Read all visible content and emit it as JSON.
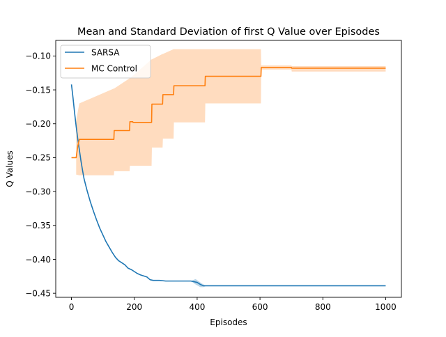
{
  "chart_data": {
    "type": "line",
    "title": "Mean and Standard Deviation of first Q Value over Episodes",
    "xlabel": "Episodes",
    "ylabel": "Q Values",
    "xlim": [
      -50,
      1050
    ],
    "ylim": [
      -0.456,
      -0.077
    ],
    "x_ticks": [
      0,
      200,
      400,
      600,
      800,
      1000
    ],
    "y_ticks": [
      -0.45,
      -0.4,
      -0.35,
      -0.3,
      -0.25,
      -0.2,
      -0.15,
      -0.1
    ],
    "x_tick_labels": [
      "0",
      "200",
      "400",
      "600",
      "800",
      "1000"
    ],
    "y_tick_labels": [
      "−0.45",
      "−0.40",
      "−0.35",
      "−0.30",
      "−0.25",
      "−0.20",
      "−0.15",
      "−0.10"
    ],
    "legend_position": "top-left",
    "grid": false,
    "series": [
      {
        "name": "SARSA",
        "color": "#1f77b4",
        "points": [
          [
            0,
            -0.142
          ],
          [
            5,
            -0.162
          ],
          [
            10,
            -0.184
          ],
          [
            15,
            -0.204
          ],
          [
            20,
            -0.222
          ],
          [
            25,
            -0.238
          ],
          [
            30,
            -0.254
          ],
          [
            35,
            -0.268
          ],
          [
            40,
            -0.281
          ],
          [
            50,
            -0.299
          ],
          [
            60,
            -0.315
          ],
          [
            70,
            -0.329
          ],
          [
            80,
            -0.342
          ],
          [
            90,
            -0.354
          ],
          [
            100,
            -0.364
          ],
          [
            110,
            -0.374
          ],
          [
            120,
            -0.382
          ],
          [
            130,
            -0.39
          ],
          [
            140,
            -0.397
          ],
          [
            150,
            -0.402
          ],
          [
            160,
            -0.405
          ],
          [
            170,
            -0.408
          ],
          [
            180,
            -0.413
          ],
          [
            190,
            -0.415
          ],
          [
            200,
            -0.418
          ],
          [
            210,
            -0.421
          ],
          [
            220,
            -0.423
          ],
          [
            240,
            -0.426
          ],
          [
            250,
            -0.43
          ],
          [
            260,
            -0.431
          ],
          [
            280,
            -0.431
          ],
          [
            300,
            -0.432
          ],
          [
            380,
            -0.432
          ],
          [
            400,
            -0.434
          ],
          [
            410,
            -0.437
          ],
          [
            420,
            -0.439
          ],
          [
            600,
            -0.439
          ],
          [
            1000,
            -0.439
          ]
        ],
        "band": [
          [
            380,
            -0.432,
            -0.432
          ],
          [
            395,
            -0.429,
            -0.437
          ],
          [
            410,
            -0.434,
            -0.441
          ],
          [
            420,
            -0.437,
            -0.441
          ],
          [
            430,
            -0.439,
            -0.439
          ]
        ]
      },
      {
        "name": "MC Control",
        "color": "#ff7f0e",
        "band_color": "#ffdcbf",
        "points": [
          [
            0,
            -0.25
          ],
          [
            15,
            -0.25
          ],
          [
            20,
            -0.233
          ],
          [
            25,
            -0.223
          ],
          [
            135,
            -0.223
          ],
          [
            136,
            -0.21
          ],
          [
            185,
            -0.21
          ],
          [
            186,
            -0.197
          ],
          [
            195,
            -0.197
          ],
          [
            196,
            -0.198
          ],
          [
            255,
            -0.198
          ],
          [
            256,
            -0.171
          ],
          [
            290,
            -0.171
          ],
          [
            291,
            -0.157
          ],
          [
            325,
            -0.157
          ],
          [
            326,
            -0.144
          ],
          [
            425,
            -0.144
          ],
          [
            426,
            -0.13
          ],
          [
            603,
            -0.13
          ],
          [
            604,
            -0.117
          ],
          [
            700,
            -0.117
          ],
          [
            701,
            -0.118
          ],
          [
            1000,
            -0.118
          ]
        ],
        "band": [
          [
            15,
            -0.195,
            -0.275
          ],
          [
            25,
            -0.17,
            -0.276
          ],
          [
            135,
            -0.148,
            -0.276
          ],
          [
            136,
            -0.148,
            -0.27
          ],
          [
            185,
            -0.133,
            -0.27
          ],
          [
            186,
            -0.133,
            -0.262
          ],
          [
            255,
            -0.105,
            -0.262
          ],
          [
            256,
            -0.105,
            -0.235
          ],
          [
            290,
            -0.097,
            -0.235
          ],
          [
            291,
            -0.097,
            -0.222
          ],
          [
            325,
            -0.09,
            -0.222
          ],
          [
            326,
            -0.09,
            -0.198
          ],
          [
            425,
            -0.09,
            -0.198
          ],
          [
            426,
            -0.09,
            -0.17
          ],
          [
            603,
            -0.09,
            -0.17
          ],
          [
            604,
            -0.114,
            -0.12
          ],
          [
            700,
            -0.114,
            -0.12
          ],
          [
            701,
            -0.115,
            -0.123
          ],
          [
            1000,
            -0.115,
            -0.123
          ]
        ]
      }
    ]
  }
}
